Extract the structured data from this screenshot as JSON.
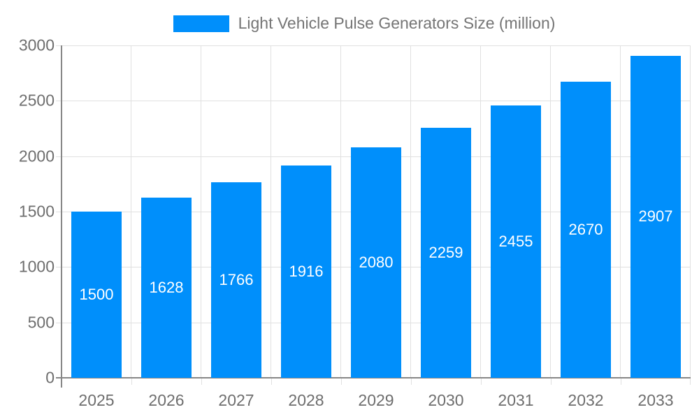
{
  "legend": {
    "label": "Light Vehicle Pulse Generators Size (million)"
  },
  "chart_data": {
    "type": "bar",
    "title": "",
    "xlabel": "",
    "ylabel": "",
    "categories": [
      "2025",
      "2026",
      "2027",
      "2028",
      "2029",
      "2030",
      "2031",
      "2032",
      "2033"
    ],
    "series": [
      {
        "name": "Light Vehicle Pulse Generators Size (million)",
        "values": [
          1500,
          1628,
          1766,
          1916,
          2080,
          2259,
          2455,
          2670,
          2907
        ]
      }
    ],
    "ylim": [
      0,
      3000
    ],
    "yticks": [
      0,
      500,
      1000,
      1500,
      2000,
      2500,
      3000
    ],
    "grid": true,
    "legend_position": "top-center",
    "value_labels": "inside-center"
  },
  "colors": {
    "bar": "#008FFB",
    "grid": "#e0e0e0",
    "axis_line": "#878787",
    "axis_label": "#6e6e6e",
    "legend_text": "#757575",
    "value_label": "#ffffff",
    "background": "#ffffff"
  }
}
